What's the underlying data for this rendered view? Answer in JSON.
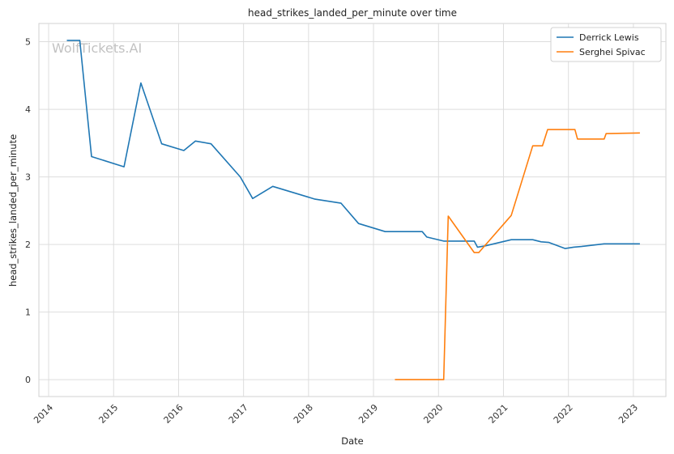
{
  "chart_data": {
    "type": "line",
    "title": "head_strikes_landed_per_minute over time",
    "xlabel": "Date",
    "ylabel": "head_strikes_landed_per_minute",
    "watermark": "WolfTickets.AI",
    "xlim": [
      2013.85,
      2023.5
    ],
    "ylim": [
      -0.25,
      5.27
    ],
    "x_ticks": [
      2014,
      2015,
      2016,
      2017,
      2018,
      2019,
      2020,
      2021,
      2022,
      2023
    ],
    "x_tick_labels": [
      "2014",
      "2015",
      "2016",
      "2017",
      "2018",
      "2019",
      "2020",
      "2021",
      "2022",
      "2023"
    ],
    "y_ticks": [
      0,
      1,
      2,
      3,
      4,
      5
    ],
    "y_tick_labels": [
      "0",
      "1",
      "2",
      "3",
      "4",
      "5"
    ],
    "grid": true,
    "legend_position": "top-right",
    "colors": {
      "Derrick Lewis": "#1f77b4",
      "Serghei Spivac": "#ff7f0e"
    },
    "series": [
      {
        "name": "Derrick Lewis",
        "color": "#1f77b4",
        "x": [
          2014.28,
          2014.48,
          2014.66,
          2015.16,
          2015.42,
          2015.74,
          2016.08,
          2016.26,
          2016.5,
          2016.95,
          2017.14,
          2017.45,
          2018.1,
          2018.5,
          2018.77,
          2019.18,
          2019.75,
          2019.82,
          2020.08,
          2020.55,
          2020.6,
          2020.72,
          2021.12,
          2021.45,
          2021.58,
          2021.7,
          2021.95,
          2022.08,
          2022.2,
          2022.55,
          2022.78,
          2023.1
        ],
        "y": [
          5.02,
          5.02,
          3.3,
          3.15,
          4.39,
          3.49,
          3.39,
          3.53,
          3.49,
          3.0,
          2.68,
          2.86,
          2.67,
          2.61,
          2.31,
          2.19,
          2.19,
          2.11,
          2.05,
          2.05,
          1.96,
          1.98,
          2.07,
          2.07,
          2.04,
          2.03,
          1.94,
          1.96,
          1.97,
          2.01,
          2.01,
          2.01
        ]
      },
      {
        "name": "Serghei Spivac",
        "color": "#ff7f0e",
        "x": [
          2019.33,
          2020.08,
          2020.15,
          2020.55,
          2020.62,
          2021.12,
          2021.45,
          2021.6,
          2021.68,
          2022.1,
          2022.14,
          2022.55,
          2022.58,
          2023.1
        ],
        "y": [
          0.0,
          0.0,
          2.42,
          1.88,
          1.88,
          2.43,
          3.46,
          3.46,
          3.7,
          3.7,
          3.56,
          3.56,
          3.64,
          3.65
        ]
      }
    ]
  }
}
